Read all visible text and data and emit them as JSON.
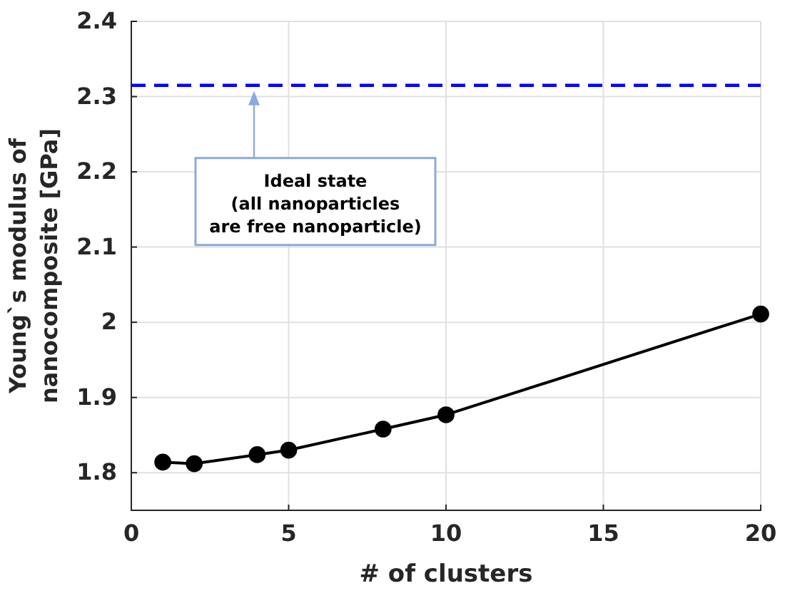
{
  "chart_data": {
    "type": "line",
    "xlabel": "# of clusters",
    "ylabel": "Young`s modulus of\nnanocomposite [GPa]",
    "x": [
      1,
      2,
      4,
      5,
      8,
      10,
      20
    ],
    "series": [
      {
        "color": "#000000",
        "values": [
          1.814,
          1.812,
          1.824,
          1.83,
          1.858,
          1.877,
          2.011
        ]
      }
    ],
    "xlim": [
      0,
      20
    ],
    "xticks": [
      0,
      5,
      10,
      15,
      20
    ],
    "ylim": [
      1.75,
      2.4
    ],
    "yticks": [
      1.8,
      1.9,
      {
        "value": 2,
        "label": "2"
      },
      2.1,
      2.2,
      2.3,
      2.4
    ],
    "grid": true,
    "marker": "circle",
    "line_style": "solid",
    "ref_lines": [
      {
        "axis": "y",
        "value": 2.315,
        "color": "#0000ff",
        "line_style": "dashed"
      }
    ],
    "annotations": [
      "Ideal state\n(all nanoparticles\nare free nanoparticle)"
    ]
  }
}
